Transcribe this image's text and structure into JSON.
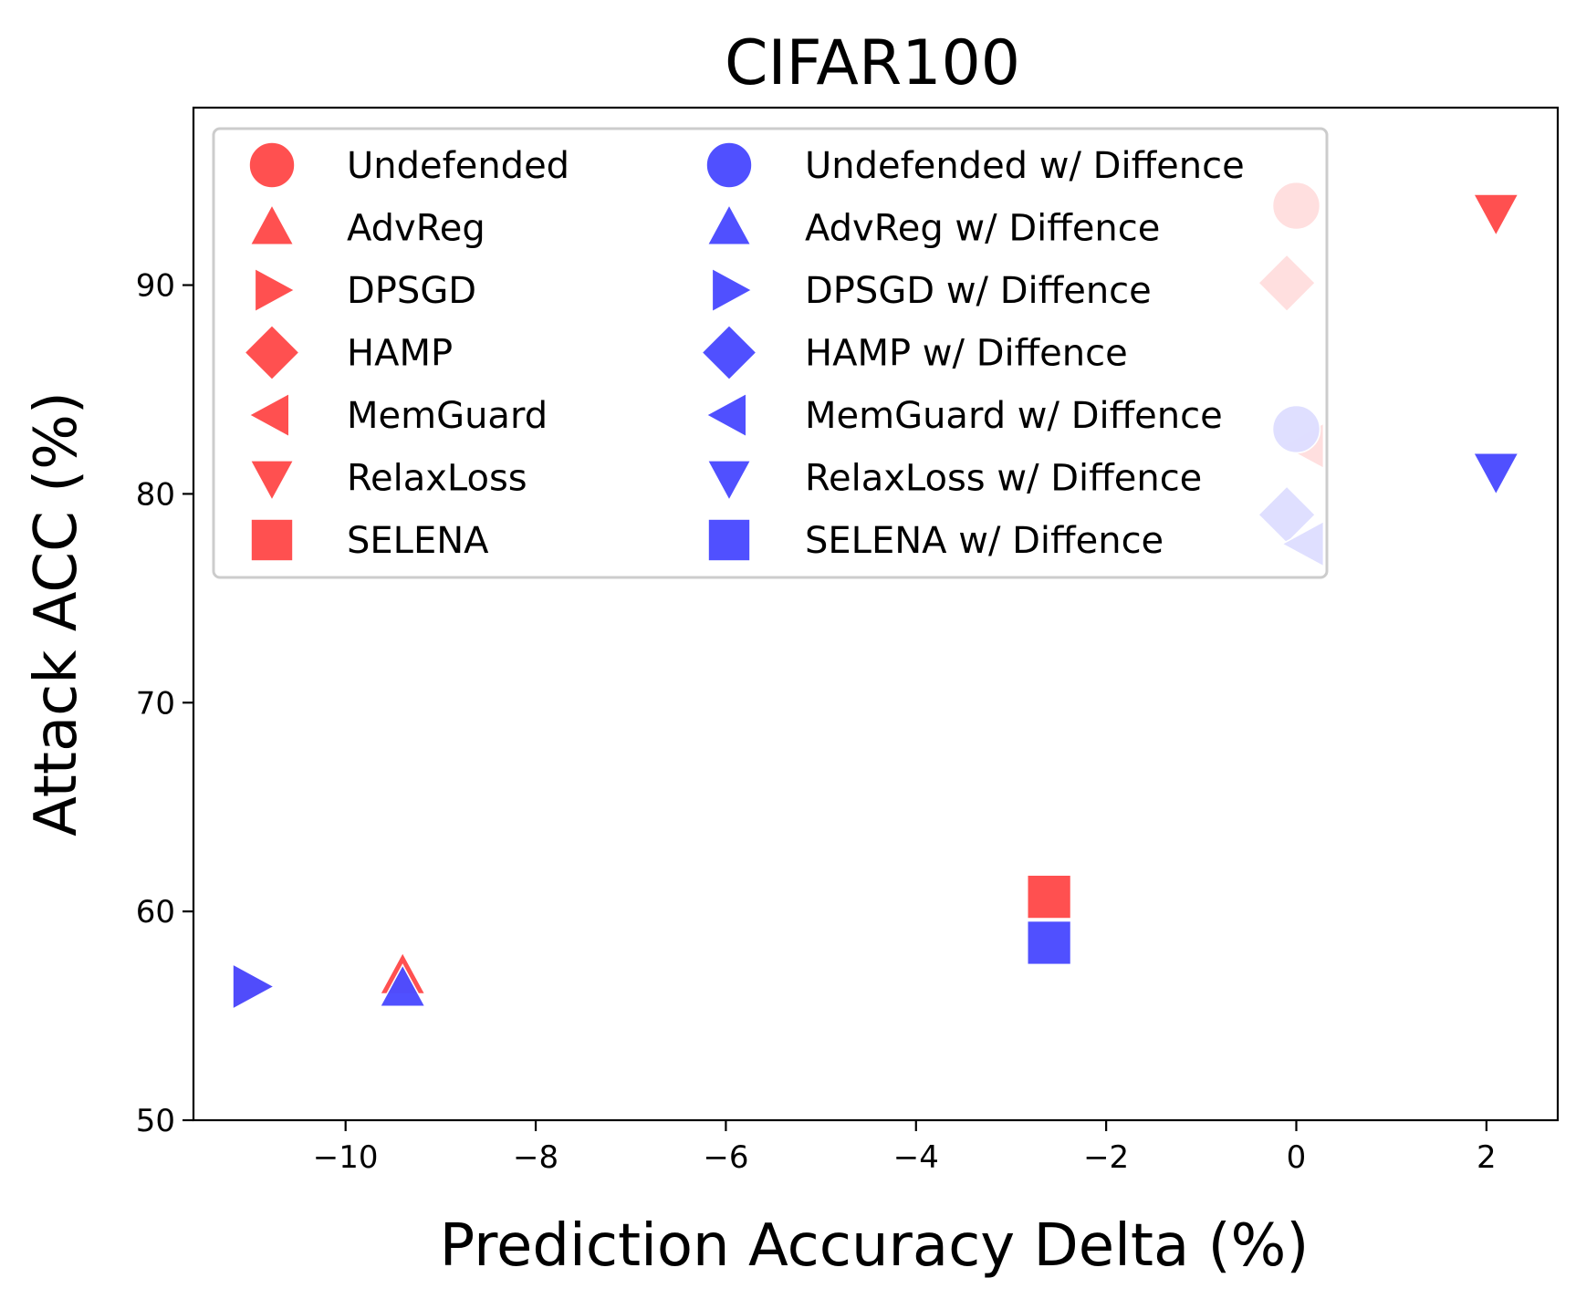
{
  "chart_data": {
    "type": "scatter",
    "title": "CIFAR100",
    "xlabel": "Prediction Accuracy Delta (%)",
    "ylabel": "Attack ACC (%)",
    "xlim": [
      -11.6,
      2.75
    ],
    "ylim": [
      50,
      98.5
    ],
    "xticks": [
      -10,
      -8,
      -6,
      -4,
      -2,
      0,
      2
    ],
    "xtick_labels": [
      "−10",
      "−8",
      "−6",
      "−4",
      "−2",
      "0",
      "2"
    ],
    "yticks": [
      50,
      60,
      70,
      80,
      90
    ],
    "ytick_labels": [
      "50",
      "60",
      "70",
      "80",
      "90"
    ],
    "grid": false,
    "legend_position": "top-left",
    "legend_columns": 2,
    "colors": {
      "undefended_group": "#ff4d4d",
      "diffence_group": "#4d4dff"
    },
    "series": [
      {
        "name": "Undefended",
        "marker": "circle",
        "group": "red",
        "points": [
          {
            "x": 0.0,
            "y": 93.8
          }
        ]
      },
      {
        "name": "AdvReg",
        "marker": "triangle-up",
        "group": "red",
        "points": [
          {
            "x": -9.4,
            "y": 56.9
          }
        ]
      },
      {
        "name": "DPSGD",
        "marker": "triangle-right",
        "group": "red",
        "points": [
          {
            "x": -11.0,
            "y": 56.4
          }
        ]
      },
      {
        "name": "HAMP",
        "marker": "diamond",
        "group": "red",
        "points": [
          {
            "x": -0.1,
            "y": 90.1
          }
        ]
      },
      {
        "name": "MemGuard",
        "marker": "triangle-left",
        "group": "red",
        "points": [
          {
            "x": 0.1,
            "y": 82.3
          }
        ]
      },
      {
        "name": "RelaxLoss",
        "marker": "triangle-down",
        "group": "red",
        "points": [
          {
            "x": 2.1,
            "y": 93.5
          }
        ]
      },
      {
        "name": "SELENA",
        "marker": "square",
        "group": "red",
        "points": [
          {
            "x": -2.6,
            "y": 60.7
          }
        ]
      },
      {
        "name": "Undefended w/ Diffence",
        "marker": "circle",
        "group": "blue",
        "points": [
          {
            "x": 0.0,
            "y": 83.1
          }
        ]
      },
      {
        "name": "AdvReg w/ Diffence",
        "marker": "triangle-up",
        "group": "blue",
        "points": [
          {
            "x": -9.4,
            "y": 56.3
          }
        ]
      },
      {
        "name": "DPSGD w/ Diffence",
        "marker": "triangle-right",
        "group": "blue",
        "points": [
          {
            "x": -11.0,
            "y": 56.4
          }
        ]
      },
      {
        "name": "HAMP w/ Diffence",
        "marker": "diamond",
        "group": "blue",
        "points": [
          {
            "x": -0.1,
            "y": 79.0
          }
        ]
      },
      {
        "name": "MemGuard w/ Diffence",
        "marker": "triangle-left",
        "group": "blue",
        "points": [
          {
            "x": 0.1,
            "y": 77.6
          }
        ]
      },
      {
        "name": "RelaxLoss w/ Diffence",
        "marker": "triangle-down",
        "group": "blue",
        "points": [
          {
            "x": 2.1,
            "y": 81.1
          }
        ]
      },
      {
        "name": "SELENA w/ Diffence",
        "marker": "square",
        "group": "blue",
        "points": [
          {
            "x": -2.6,
            "y": 58.5
          }
        ]
      }
    ]
  }
}
